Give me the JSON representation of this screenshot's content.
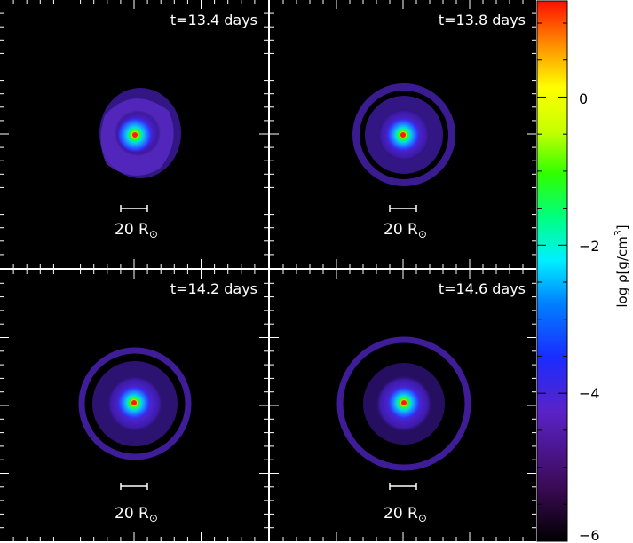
{
  "panels": [
    {
      "time_label": "t=13.4 days",
      "scale_label": "20 R",
      "scale_symbol": "⊙"
    },
    {
      "time_label": "t=13.8 days",
      "scale_label": "20 R",
      "scale_symbol": "⊙"
    },
    {
      "time_label": "t=14.2 days",
      "scale_label": "20 R",
      "scale_symbol": "⊙"
    },
    {
      "time_label": "t=14.6 days",
      "scale_label": "20 R",
      "scale_symbol": "⊙"
    }
  ],
  "colorbar": {
    "label_prefix": "log ρ[g/cm",
    "label_exponent": "3",
    "label_suffix": "]",
    "ticks": [
      "0",
      "−2",
      "−4",
      "−6"
    ],
    "tick_values": [
      0,
      -2,
      -4,
      -6
    ],
    "range": [
      -6,
      1.3
    ]
  }
}
